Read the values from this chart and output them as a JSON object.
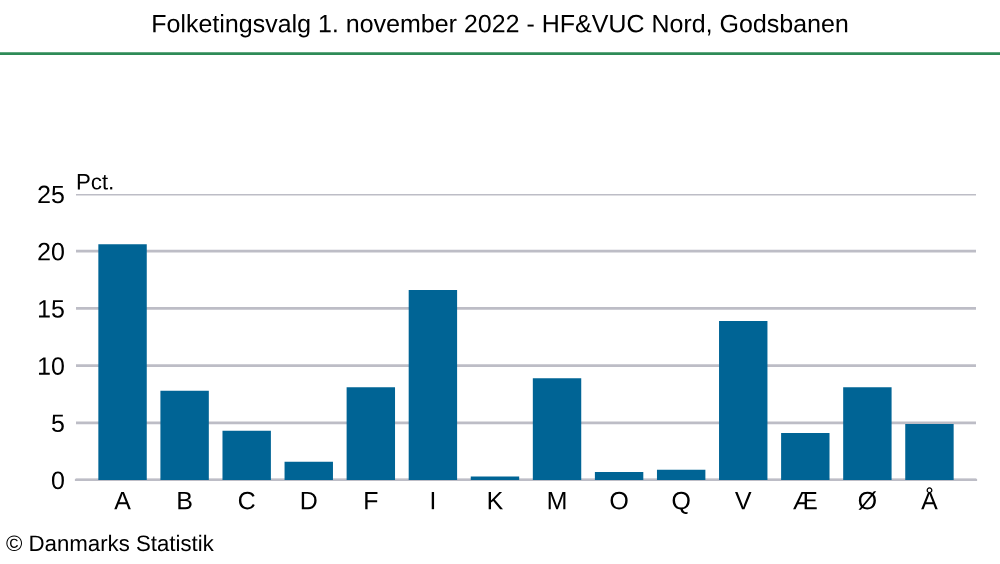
{
  "chart_data": {
    "type": "bar",
    "title": "Folketingsvalg 1. november 2022 - HF&VUC Nord, Godsbanen",
    "ylabel": "Pct.",
    "categories": [
      "A",
      "B",
      "C",
      "D",
      "F",
      "I",
      "K",
      "M",
      "O",
      "Q",
      "V",
      "Æ",
      "Ø",
      "Å"
    ],
    "values": [
      20.6,
      7.8,
      4.3,
      1.6,
      8.1,
      16.6,
      0.3,
      8.9,
      0.7,
      0.9,
      13.9,
      4.1,
      8.1,
      4.9
    ],
    "color": "#006495",
    "ylim": [
      0,
      25
    ],
    "yticks": [
      0,
      5,
      10,
      15,
      20,
      25
    ],
    "grid": "y",
    "annotations": [
      "© Danmarks Statistik"
    ]
  }
}
